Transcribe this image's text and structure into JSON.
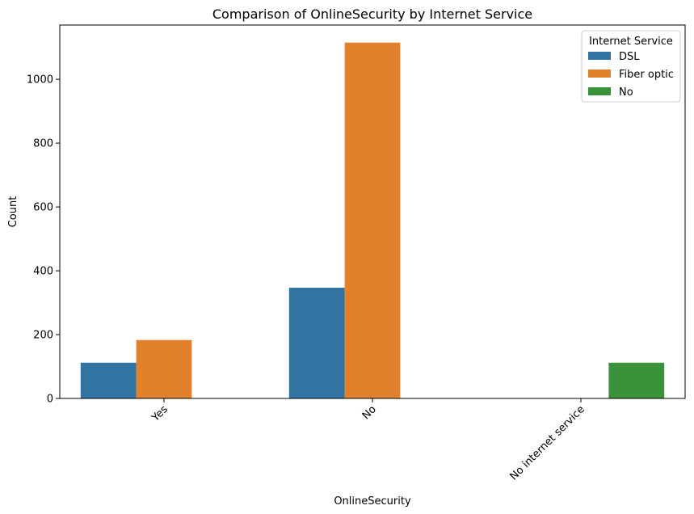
{
  "chart_data": {
    "type": "bar",
    "title": "Comparison of OnlineSecurity by Internet Service",
    "xlabel": "OnlineSecurity",
    "ylabel": "Count",
    "categories": [
      "Yes",
      "No",
      "No internet service"
    ],
    "series": [
      {
        "name": "DSL",
        "color": "#3274a1",
        "values": [
          112,
          347,
          0
        ]
      },
      {
        "name": "Fiber optic",
        "color": "#e1812c",
        "values": [
          183,
          1115,
          0
        ]
      },
      {
        "name": "No",
        "color": "#3a923a",
        "values": [
          0,
          0,
          112
        ]
      }
    ],
    "yticks": [
      0,
      200,
      400,
      600,
      800,
      1000
    ],
    "ylim": [
      0,
      1170
    ],
    "grid": false,
    "legend": {
      "title": "Internet Service",
      "placement": "top-right"
    },
    "xtick_rotation_deg": 45
  }
}
